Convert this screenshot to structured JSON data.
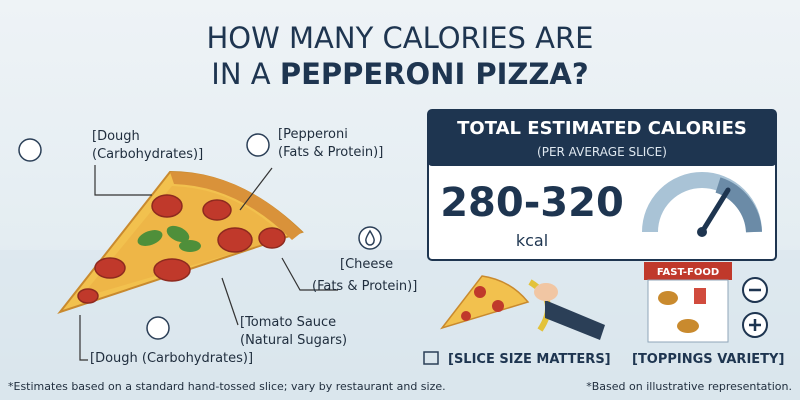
{
  "title": {
    "line1": "HOW MANY CALORIES ARE",
    "line2_prefix": "IN A",
    "line2_emphasis": "PEPPERONI PIZZA?"
  },
  "labels": [
    {
      "lines": [
        "[Dough",
        "(Carbohydrates)]"
      ]
    },
    {
      "lines": [
        "[Pepperoni",
        "(Fats & Protein)]"
      ]
    },
    {
      "lines": [
        "[Cheese",
        "(Fats & Protein)]"
      ]
    },
    {
      "lines": [
        "[Tomato Sauce",
        "(Natural Sugars)"
      ]
    },
    {
      "lines": [
        "[Dough (Carbohydrates)]"
      ]
    }
  ],
  "panel": {
    "title": "TOTAL ESTIMATED CALORIES",
    "subtitle": "(PER AVERAGE SLICE)",
    "range": "280-320",
    "unit": "kcal"
  },
  "tips": [
    {
      "sign": null,
      "caption": "[SLICE SIZE MATTERS]"
    },
    {
      "sign": "FAST-FOOD",
      "caption": "[TOPPINGS VARIETY]"
    }
  ],
  "footnotes": {
    "left": "*Estimates based on a standard hand-tossed slice; vary by restaurant and size.",
    "right": "*Based on illustrative representation."
  }
}
